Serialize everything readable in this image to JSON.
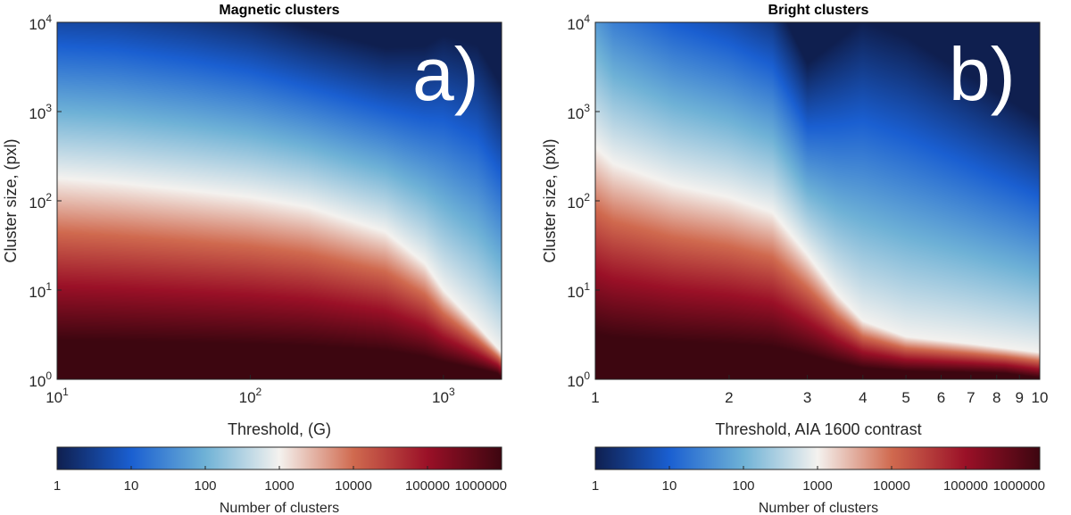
{
  "chart_data": [
    {
      "type": "heatmap",
      "panel_label": "a)",
      "title": "Magnetic clusters",
      "xlabel": "Threshold, (G)",
      "ylabel": "Cluster size, (pxl)",
      "xscale": "log",
      "yscale": "log",
      "xlim": [
        10,
        2000
      ],
      "ylim": [
        1,
        10000
      ],
      "x_ticks": [
        {
          "value": 10,
          "base": "10",
          "exp": "1"
        },
        {
          "value": 100,
          "base": "10",
          "exp": "2"
        },
        {
          "value": 1000,
          "base": "10",
          "exp": "3"
        }
      ],
      "y_ticks": [
        {
          "value": 1,
          "base": "10",
          "exp": "0"
        },
        {
          "value": 10,
          "base": "10",
          "exp": "1"
        },
        {
          "value": 100,
          "base": "10",
          "exp": "2"
        },
        {
          "value": 1000,
          "base": "10",
          "exp": "3"
        },
        {
          "value": 10000,
          "base": "10",
          "exp": "4"
        }
      ],
      "profile": {
        "thresholds": [
          10,
          20,
          50,
          100,
          200,
          500,
          800,
          1000,
          1500,
          2000
        ],
        "white_level_size": [
          180,
          160,
          130,
          110,
          85,
          45,
          20,
          10,
          4,
          2
        ],
        "cyan_level_size": [
          1000,
          900,
          700,
          560,
          400,
          220,
          130,
          90,
          45,
          20
        ]
      },
      "colorbar": {
        "label": "Number of clusters",
        "ticks": [
          "1",
          "10",
          "100",
          "1000",
          "10000",
          "100000",
          "1000000"
        ]
      }
    },
    {
      "type": "heatmap",
      "panel_label": "b)",
      "title": "Bright clusters",
      "xlabel": "Threshold, AIA 1600 contrast",
      "ylabel": "Cluster size, (pxl)",
      "xscale": "log",
      "yscale": "log",
      "xlim": [
        1,
        10
      ],
      "ylim": [
        1,
        10000
      ],
      "x_ticks": [
        {
          "value": 1,
          "label": "1"
        },
        {
          "value": 2,
          "label": "2"
        },
        {
          "value": 3,
          "label": "3"
        },
        {
          "value": 4,
          "label": "4"
        },
        {
          "value": 5,
          "label": "5"
        },
        {
          "value": 6,
          "label": "6"
        },
        {
          "value": 7,
          "label": "7"
        },
        {
          "value": 8,
          "label": "8"
        },
        {
          "value": 9,
          "label": "9"
        },
        {
          "value": 10,
          "label": "10"
        }
      ],
      "y_ticks": [
        {
          "value": 1,
          "base": "10",
          "exp": "0"
        },
        {
          "value": 10,
          "base": "10",
          "exp": "1"
        },
        {
          "value": 100,
          "base": "10",
          "exp": "2"
        },
        {
          "value": 1000,
          "base": "10",
          "exp": "3"
        },
        {
          "value": 10000,
          "base": "10",
          "exp": "4"
        }
      ],
      "profile": {
        "thresholds": [
          1,
          1.1,
          1.5,
          2,
          2.5,
          3,
          3.5,
          4,
          5,
          7,
          10
        ],
        "white_level_size": [
          400,
          260,
          150,
          110,
          75,
          25,
          9,
          4.5,
          3,
          2.5,
          2
        ],
        "cyan_level_size": [
          5000,
          2500,
          1200,
          800,
          500,
          130,
          80,
          60,
          40,
          25,
          15
        ]
      },
      "colorbar": {
        "label": "Number of clusters",
        "ticks": [
          "1",
          "10",
          "100",
          "1000",
          "10000",
          "100000",
          "1000000"
        ]
      }
    }
  ],
  "colormap": {
    "stops": [
      "#0f1f4f",
      "#1a5fd1",
      "#6fb2d6",
      "#f4f2ef",
      "#d06a4f",
      "#9a1027",
      "#3d0610"
    ]
  }
}
